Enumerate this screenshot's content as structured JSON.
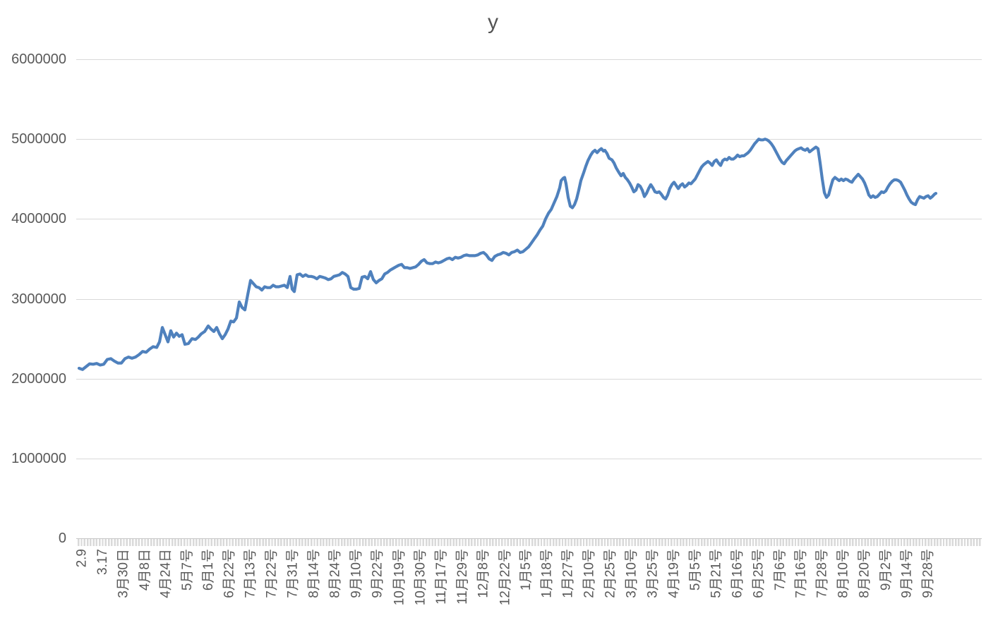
{
  "chart_data": {
    "type": "line",
    "title": "y",
    "series_name": "y",
    "legend": "none",
    "grid": "horizontal",
    "background_color": "#FFFFFF",
    "line_color": "#4F81BD",
    "gridline_color": "#D9D9D9",
    "axis_line_color": "#C6C6C6",
    "label_color": "#595959",
    "y_axis": {
      "min": 0,
      "max": 6000000,
      "tick_interval": 1000000,
      "tick_labels": [
        "6000000",
        "5000000",
        "4000000",
        "3000000",
        "2000000",
        "1000000",
        "0"
      ]
    },
    "x_axis": {
      "tick_labels": [
        "2.9",
        "3.17",
        "3月30日",
        "4月8日",
        "4月24日",
        "5月7号",
        "6月1号",
        "6月22号",
        "7月13号",
        "7月22号",
        "7月31号",
        "8月14号",
        "8月24号",
        "9月10号",
        "9月22号",
        "10月19号",
        "10月30号",
        "11月17号",
        "11月29号",
        "12月8号",
        "12月22号",
        "1月5号",
        "1月18号",
        "1月27号",
        "2月10号",
        "2月25号",
        "3月10号",
        "3月25号",
        "4月19号",
        "5月5号",
        "5月21号",
        "6月16号",
        "6月25号",
        "7月6号",
        "7月16号",
        "7月28号",
        "8月10号",
        "8月20号",
        "9月2号",
        "9月14号",
        "9月28号"
      ],
      "points_per_label": 7
    },
    "points": [
      [
        2,
        2130000
      ],
      [
        7,
        2115000
      ],
      [
        12,
        2150000
      ],
      [
        17,
        2185000
      ],
      [
        22,
        2180000
      ],
      [
        27,
        2190000
      ],
      [
        32,
        2170000
      ],
      [
        37,
        2180000
      ],
      [
        42,
        2240000
      ],
      [
        47,
        2250000
      ],
      [
        52,
        2220000
      ],
      [
        57,
        2195000
      ],
      [
        62,
        2195000
      ],
      [
        67,
        2250000
      ],
      [
        72,
        2270000
      ],
      [
        77,
        2255000
      ],
      [
        82,
        2270000
      ],
      [
        87,
        2300000
      ],
      [
        92,
        2340000
      ],
      [
        97,
        2330000
      ],
      [
        102,
        2370000
      ],
      [
        107,
        2400000
      ],
      [
        112,
        2390000
      ],
      [
        116,
        2460000
      ],
      [
        120,
        2640000
      ],
      [
        124,
        2550000
      ],
      [
        128,
        2460000
      ],
      [
        132,
        2600000
      ],
      [
        136,
        2520000
      ],
      [
        140,
        2570000
      ],
      [
        144,
        2530000
      ],
      [
        148,
        2550000
      ],
      [
        152,
        2430000
      ],
      [
        157,
        2440000
      ],
      [
        162,
        2500000
      ],
      [
        167,
        2490000
      ],
      [
        171,
        2520000
      ],
      [
        175,
        2560000
      ],
      [
        180,
        2590000
      ],
      [
        185,
        2660000
      ],
      [
        189,
        2620000
      ],
      [
        193,
        2590000
      ],
      [
        197,
        2640000
      ],
      [
        201,
        2560000
      ],
      [
        205,
        2500000
      ],
      [
        209,
        2550000
      ],
      [
        213,
        2620000
      ],
      [
        217,
        2720000
      ],
      [
        221,
        2710000
      ],
      [
        225,
        2760000
      ],
      [
        229,
        2960000
      ],
      [
        233,
        2890000
      ],
      [
        237,
        2860000
      ],
      [
        241,
        3050000
      ],
      [
        245,
        3230000
      ],
      [
        249,
        3190000
      ],
      [
        253,
        3150000
      ],
      [
        257,
        3140000
      ],
      [
        261,
        3110000
      ],
      [
        265,
        3150000
      ],
      [
        269,
        3140000
      ],
      [
        273,
        3140000
      ],
      [
        277,
        3170000
      ],
      [
        281,
        3150000
      ],
      [
        285,
        3150000
      ],
      [
        289,
        3160000
      ],
      [
        293,
        3170000
      ],
      [
        297,
        3140000
      ],
      [
        301,
        3280000
      ],
      [
        304,
        3120000
      ],
      [
        307,
        3090000
      ],
      [
        311,
        3300000
      ],
      [
        315,
        3310000
      ],
      [
        319,
        3280000
      ],
      [
        323,
        3300000
      ],
      [
        327,
        3280000
      ],
      [
        331,
        3280000
      ],
      [
        335,
        3270000
      ],
      [
        339,
        3250000
      ],
      [
        343,
        3280000
      ],
      [
        347,
        3270000
      ],
      [
        351,
        3260000
      ],
      [
        355,
        3240000
      ],
      [
        359,
        3250000
      ],
      [
        363,
        3280000
      ],
      [
        367,
        3290000
      ],
      [
        371,
        3300000
      ],
      [
        375,
        3330000
      ],
      [
        379,
        3310000
      ],
      [
        383,
        3280000
      ],
      [
        387,
        3140000
      ],
      [
        391,
        3120000
      ],
      [
        395,
        3120000
      ],
      [
        399,
        3130000
      ],
      [
        403,
        3270000
      ],
      [
        407,
        3280000
      ],
      [
        411,
        3250000
      ],
      [
        415,
        3340000
      ],
      [
        419,
        3240000
      ],
      [
        423,
        3200000
      ],
      [
        427,
        3230000
      ],
      [
        431,
        3250000
      ],
      [
        435,
        3310000
      ],
      [
        439,
        3330000
      ],
      [
        443,
        3360000
      ],
      [
        447,
        3380000
      ],
      [
        451,
        3400000
      ],
      [
        455,
        3420000
      ],
      [
        459,
        3430000
      ],
      [
        463,
        3390000
      ],
      [
        467,
        3390000
      ],
      [
        471,
        3380000
      ],
      [
        475,
        3390000
      ],
      [
        479,
        3400000
      ],
      [
        483,
        3430000
      ],
      [
        487,
        3470000
      ],
      [
        491,
        3490000
      ],
      [
        495,
        3450000
      ],
      [
        499,
        3440000
      ],
      [
        503,
        3440000
      ],
      [
        507,
        3460000
      ],
      [
        511,
        3450000
      ],
      [
        515,
        3460000
      ],
      [
        519,
        3480000
      ],
      [
        523,
        3500000
      ],
      [
        527,
        3510000
      ],
      [
        531,
        3490000
      ],
      [
        535,
        3520000
      ],
      [
        539,
        3510000
      ],
      [
        543,
        3520000
      ],
      [
        547,
        3540000
      ],
      [
        551,
        3550000
      ],
      [
        555,
        3540000
      ],
      [
        559,
        3540000
      ],
      [
        563,
        3540000
      ],
      [
        567,
        3550000
      ],
      [
        571,
        3570000
      ],
      [
        575,
        3580000
      ],
      [
        579,
        3550000
      ],
      [
        583,
        3500000
      ],
      [
        587,
        3480000
      ],
      [
        591,
        3530000
      ],
      [
        595,
        3550000
      ],
      [
        599,
        3560000
      ],
      [
        603,
        3580000
      ],
      [
        607,
        3570000
      ],
      [
        611,
        3550000
      ],
      [
        615,
        3580000
      ],
      [
        619,
        3590000
      ],
      [
        623,
        3610000
      ],
      [
        627,
        3580000
      ],
      [
        631,
        3590000
      ],
      [
        635,
        3620000
      ],
      [
        639,
        3650000
      ],
      [
        643,
        3700000
      ],
      [
        647,
        3750000
      ],
      [
        651,
        3800000
      ],
      [
        655,
        3860000
      ],
      [
        659,
        3910000
      ],
      [
        663,
        4000000
      ],
      [
        667,
        4070000
      ],
      [
        671,
        4120000
      ],
      [
        675,
        4200000
      ],
      [
        679,
        4280000
      ],
      [
        683,
        4390000
      ],
      [
        685,
        4480000
      ],
      [
        688,
        4510000
      ],
      [
        690,
        4520000
      ],
      [
        692,
        4440000
      ],
      [
        695,
        4270000
      ],
      [
        698,
        4160000
      ],
      [
        701,
        4140000
      ],
      [
        704,
        4180000
      ],
      [
        707,
        4250000
      ],
      [
        710,
        4360000
      ],
      [
        713,
        4480000
      ],
      [
        717,
        4580000
      ],
      [
        720,
        4660000
      ],
      [
        723,
        4730000
      ],
      [
        727,
        4800000
      ],
      [
        730,
        4840000
      ],
      [
        733,
        4860000
      ],
      [
        736,
        4830000
      ],
      [
        739,
        4860000
      ],
      [
        742,
        4880000
      ],
      [
        745,
        4850000
      ],
      [
        747,
        4860000
      ],
      [
        750,
        4820000
      ],
      [
        753,
        4760000
      ],
      [
        757,
        4740000
      ],
      [
        760,
        4700000
      ],
      [
        763,
        4640000
      ],
      [
        767,
        4580000
      ],
      [
        770,
        4540000
      ],
      [
        773,
        4570000
      ],
      [
        776,
        4520000
      ],
      [
        779,
        4490000
      ],
      [
        782,
        4450000
      ],
      [
        785,
        4400000
      ],
      [
        788,
        4340000
      ],
      [
        791,
        4360000
      ],
      [
        794,
        4430000
      ],
      [
        797,
        4410000
      ],
      [
        800,
        4360000
      ],
      [
        803,
        4280000
      ],
      [
        806,
        4320000
      ],
      [
        809,
        4380000
      ],
      [
        812,
        4430000
      ],
      [
        815,
        4390000
      ],
      [
        818,
        4340000
      ],
      [
        821,
        4330000
      ],
      [
        824,
        4340000
      ],
      [
        827,
        4310000
      ],
      [
        830,
        4270000
      ],
      [
        833,
        4250000
      ],
      [
        836,
        4300000
      ],
      [
        839,
        4380000
      ],
      [
        842,
        4430000
      ],
      [
        845,
        4460000
      ],
      [
        848,
        4420000
      ],
      [
        851,
        4380000
      ],
      [
        854,
        4420000
      ],
      [
        857,
        4440000
      ],
      [
        860,
        4400000
      ],
      [
        863,
        4420000
      ],
      [
        866,
        4450000
      ],
      [
        869,
        4440000
      ],
      [
        872,
        4470000
      ],
      [
        875,
        4500000
      ],
      [
        878,
        4550000
      ],
      [
        881,
        4600000
      ],
      [
        884,
        4650000
      ],
      [
        887,
        4680000
      ],
      [
        890,
        4700000
      ],
      [
        893,
        4720000
      ],
      [
        896,
        4700000
      ],
      [
        899,
        4670000
      ],
      [
        902,
        4720000
      ],
      [
        905,
        4740000
      ],
      [
        908,
        4700000
      ],
      [
        911,
        4670000
      ],
      [
        914,
        4730000
      ],
      [
        917,
        4750000
      ],
      [
        920,
        4740000
      ],
      [
        923,
        4770000
      ],
      [
        926,
        4750000
      ],
      [
        929,
        4750000
      ],
      [
        932,
        4770000
      ],
      [
        935,
        4800000
      ],
      [
        938,
        4780000
      ],
      [
        941,
        4790000
      ],
      [
        944,
        4790000
      ],
      [
        947,
        4810000
      ],
      [
        950,
        4830000
      ],
      [
        953,
        4860000
      ],
      [
        956,
        4900000
      ],
      [
        959,
        4940000
      ],
      [
        962,
        4970000
      ],
      [
        965,
        5000000
      ],
      [
        968,
        4990000
      ],
      [
        971,
        4990000
      ],
      [
        974,
        5000000
      ],
      [
        977,
        4990000
      ],
      [
        980,
        4970000
      ],
      [
        983,
        4940000
      ],
      [
        986,
        4900000
      ],
      [
        989,
        4850000
      ],
      [
        992,
        4800000
      ],
      [
        995,
        4750000
      ],
      [
        998,
        4710000
      ],
      [
        1001,
        4690000
      ],
      [
        1004,
        4730000
      ],
      [
        1007,
        4760000
      ],
      [
        1010,
        4790000
      ],
      [
        1013,
        4820000
      ],
      [
        1016,
        4850000
      ],
      [
        1019,
        4870000
      ],
      [
        1022,
        4880000
      ],
      [
        1025,
        4890000
      ],
      [
        1028,
        4870000
      ],
      [
        1031,
        4860000
      ],
      [
        1034,
        4880000
      ],
      [
        1037,
        4840000
      ],
      [
        1040,
        4860000
      ],
      [
        1043,
        4880000
      ],
      [
        1046,
        4900000
      ],
      [
        1049,
        4880000
      ],
      [
        1052,
        4700000
      ],
      [
        1055,
        4500000
      ],
      [
        1058,
        4330000
      ],
      [
        1061,
        4270000
      ],
      [
        1064,
        4300000
      ],
      [
        1067,
        4400000
      ],
      [
        1070,
        4490000
      ],
      [
        1073,
        4520000
      ],
      [
        1076,
        4500000
      ],
      [
        1079,
        4480000
      ],
      [
        1082,
        4500000
      ],
      [
        1085,
        4480000
      ],
      [
        1088,
        4500000
      ],
      [
        1091,
        4490000
      ],
      [
        1094,
        4470000
      ],
      [
        1097,
        4460000
      ],
      [
        1100,
        4500000
      ],
      [
        1103,
        4530000
      ],
      [
        1106,
        4560000
      ],
      [
        1109,
        4530000
      ],
      [
        1112,
        4500000
      ],
      [
        1115,
        4450000
      ],
      [
        1118,
        4380000
      ],
      [
        1121,
        4300000
      ],
      [
        1124,
        4270000
      ],
      [
        1127,
        4290000
      ],
      [
        1130,
        4270000
      ],
      [
        1133,
        4280000
      ],
      [
        1136,
        4310000
      ],
      [
        1139,
        4340000
      ],
      [
        1142,
        4330000
      ],
      [
        1145,
        4350000
      ],
      [
        1148,
        4400000
      ],
      [
        1151,
        4440000
      ],
      [
        1154,
        4470000
      ],
      [
        1157,
        4490000
      ],
      [
        1160,
        4490000
      ],
      [
        1163,
        4480000
      ],
      [
        1166,
        4460000
      ],
      [
        1169,
        4410000
      ],
      [
        1172,
        4360000
      ],
      [
        1175,
        4300000
      ],
      [
        1178,
        4250000
      ],
      [
        1181,
        4210000
      ],
      [
        1184,
        4190000
      ],
      [
        1187,
        4180000
      ],
      [
        1190,
        4240000
      ],
      [
        1193,
        4280000
      ],
      [
        1196,
        4270000
      ],
      [
        1199,
        4260000
      ],
      [
        1202,
        4280000
      ],
      [
        1205,
        4290000
      ],
      [
        1208,
        4260000
      ],
      [
        1211,
        4280000
      ],
      [
        1214,
        4310000
      ],
      [
        1216,
        4320000
      ]
    ]
  }
}
